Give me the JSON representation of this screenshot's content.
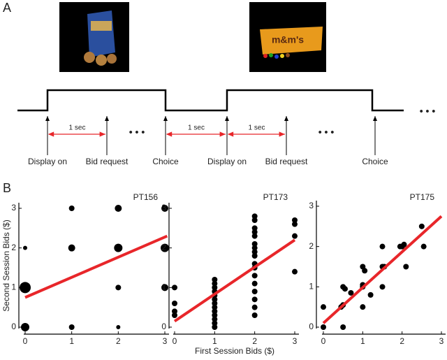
{
  "panel_labels": [
    "A",
    "B"
  ],
  "timeline": {
    "events": [
      "Display on",
      "Bid request",
      "Choice",
      "Display on",
      "Bid request",
      "Choice"
    ],
    "intervals": [
      "1 sec",
      "1 sec",
      "1 sec"
    ],
    "ellipsis": "• • •"
  },
  "chart_data": [
    {
      "type": "scatter",
      "title": "PT156",
      "y_label": "Second Session Bids ($)",
      "xlim": [
        0,
        3
      ],
      "ylim": [
        0,
        3
      ],
      "xticks": [
        0,
        1,
        2,
        3
      ],
      "yticks": [
        0,
        1,
        2,
        3
      ],
      "x": [
        0,
        0,
        0,
        1,
        1,
        1,
        2,
        2,
        2,
        2,
        3,
        3,
        3
      ],
      "y": [
        0,
        1,
        2,
        0,
        2,
        3,
        0,
        1,
        2,
        3,
        1,
        2,
        3
      ],
      "sizes": [
        6,
        8,
        3,
        4,
        5,
        4,
        3,
        4,
        6,
        5,
        5,
        6,
        5
      ],
      "color": "#000000",
      "fit": {
        "x": [
          0,
          3.05
        ],
        "y": [
          0.75,
          2.3
        ],
        "color": "#e8262a"
      }
    },
    {
      "type": "scatter",
      "title": "PT173",
      "x_label": "First Session Bids ($)",
      "xlim": [
        0,
        3
      ],
      "ylim": [
        0,
        3
      ],
      "xticks": [
        0,
        1,
        2,
        3
      ],
      "yticks": [
        0,
        1,
        2,
        3
      ],
      "x": [
        0,
        0,
        0,
        0,
        1,
        1,
        1,
        1,
        1,
        1,
        1,
        1,
        1,
        1,
        1,
        1,
        1,
        2,
        2,
        2,
        2,
        2,
        2,
        2,
        2,
        2,
        2,
        2,
        2,
        2,
        2,
        2,
        2,
        2,
        3,
        3,
        3,
        3
      ],
      "y": [
        1,
        0.6,
        0.4,
        0.3,
        0,
        0.1,
        0.2,
        0.3,
        0.4,
        0.5,
        0.6,
        0.7,
        0.8,
        0.9,
        1,
        1.1,
        1.2,
        0.3,
        0.5,
        0.7,
        0.9,
        1.1,
        1.3,
        1.5,
        1.6,
        1.8,
        1.9,
        2,
        2.1,
        2.3,
        2.4,
        2.5,
        2.7,
        2.8,
        1.4,
        2.3,
        2.6,
        2.7
      ],
      "color": "#000000",
      "fit": {
        "x": [
          0,
          3
        ],
        "y": [
          0.15,
          2.2
        ],
        "color": "#e8262a"
      }
    },
    {
      "type": "scatter",
      "title": "PT175",
      "xlim": [
        0,
        3
      ],
      "ylim": [
        0,
        3
      ],
      "xticks": [
        0,
        1,
        2,
        3
      ],
      "yticks": [
        0,
        1,
        2,
        3
      ],
      "x": [
        0,
        0,
        0.5,
        0.45,
        0.5,
        0.5,
        0.55,
        0.7,
        1,
        1,
        1,
        1,
        1.05,
        1.2,
        1.5,
        1.5,
        1.55,
        1.5,
        1.95,
        2,
        2.05,
        2.1,
        2.5,
        2.55
      ],
      "y": [
        0.5,
        0,
        0,
        0.5,
        0.55,
        1,
        0.95,
        0.85,
        0.5,
        1,
        1.05,
        1.5,
        1.4,
        0.8,
        1,
        1.5,
        1.5,
        2,
        2,
        2,
        2.05,
        1.5,
        2.5,
        2
      ],
      "color": "#000000",
      "fit": {
        "x": [
          0,
          3
        ],
        "y": [
          0.1,
          2.75
        ],
        "color": "#e8262a"
      }
    }
  ]
}
